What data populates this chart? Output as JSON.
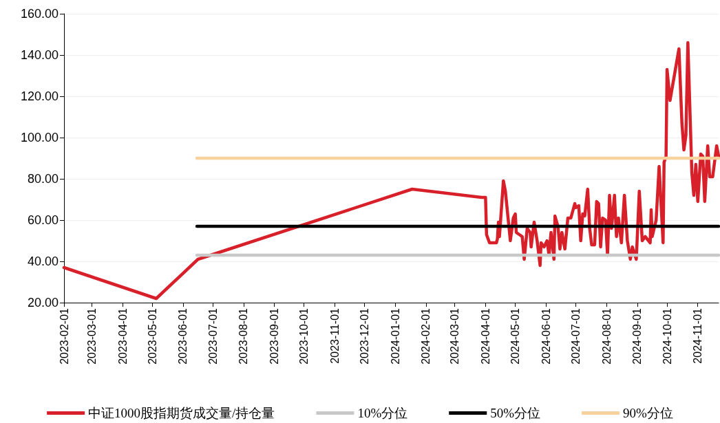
{
  "chart_data": {
    "type": "line",
    "marker": "none",
    "line_style": "solid",
    "grid": "y",
    "legend": "bottom",
    "xlim": [
      "2023-02-01",
      "2024-11-22"
    ],
    "xticks": [
      "2023-02-01",
      "2023-03-01",
      "2023-04-01",
      "2023-05-01",
      "2023-06-01",
      "2023-07-01",
      "2023-08-01",
      "2023-09-01",
      "2023-10-01",
      "2023-11-01",
      "2023-12-01",
      "2024-01-01",
      "2024-02-01",
      "2024-03-01",
      "2024-04-01",
      "2024-05-01",
      "2024-06-01",
      "2024-07-01",
      "2024-08-01",
      "2024-09-01",
      "2024-10-01",
      "2024-11-01"
    ],
    "ylim": [
      20,
      160
    ],
    "yticks": [
      {
        "value": 20,
        "label": "20.00"
      },
      {
        "value": 40,
        "label": "40.00"
      },
      {
        "value": 60,
        "label": "60.00"
      },
      {
        "value": 80,
        "label": "80.00"
      },
      {
        "value": 100,
        "label": "100.00"
      },
      {
        "value": 120,
        "label": "120.00"
      },
      {
        "value": 140,
        "label": "140.00"
      },
      {
        "value": 160,
        "label": "160.00"
      }
    ],
    "series": [
      {
        "name": "中证1000股指期货成交量/持仓量",
        "color": "#d7202a",
        "x": [
          "2023-02-01",
          "2023-05-05",
          "2023-06-16",
          "2024-01-18",
          "2024-03-28",
          "2024-04-01",
          "2024-04-02",
          "2024-04-05",
          "2024-04-12",
          "2024-04-13",
          "2024-04-14",
          "2024-04-15",
          "2024-04-19",
          "2024-04-21",
          "2024-04-26",
          "2024-04-29",
          "2024-05-01",
          "2024-05-02",
          "2024-05-08",
          "2024-05-10",
          "2024-05-13",
          "2024-05-16",
          "2024-05-17",
          "2024-05-20",
          "2024-05-23",
          "2024-05-26",
          "2024-05-27",
          "2024-05-30",
          "2024-06-02",
          "2024-06-04",
          "2024-06-06",
          "2024-06-09",
          "2024-06-10",
          "2024-06-13",
          "2024-06-15",
          "2024-06-17",
          "2024-06-20",
          "2024-06-23",
          "2024-06-26",
          "2024-06-30",
          "2024-07-01",
          "2024-07-04",
          "2024-07-06",
          "2024-07-08",
          "2024-07-10",
          "2024-07-13",
          "2024-07-15",
          "2024-07-17",
          "2024-07-20",
          "2024-07-22",
          "2024-07-24",
          "2024-07-26",
          "2024-07-28",
          "2024-07-31",
          "2024-08-02",
          "2024-08-04",
          "2024-08-06",
          "2024-08-09",
          "2024-08-11",
          "2024-08-13",
          "2024-08-16",
          "2024-08-19",
          "2024-08-22",
          "2024-08-25",
          "2024-08-27",
          "2024-08-31",
          "2024-09-03",
          "2024-09-06",
          "2024-09-09",
          "2024-09-14",
          "2024-09-15",
          "2024-09-16",
          "2024-09-20",
          "2024-09-23",
          "2024-09-27",
          "2024-09-28",
          "2024-09-30",
          "2024-10-01",
          "2024-10-04",
          "2024-10-13",
          "2024-10-16",
          "2024-10-18",
          "2024-10-20",
          "2024-10-22",
          "2024-10-26",
          "2024-10-28",
          "2024-10-30",
          "2024-11-01",
          "2024-11-04",
          "2024-11-06",
          "2024-11-08",
          "2024-11-11",
          "2024-11-13",
          "2024-11-16",
          "2024-11-20",
          "2024-11-22"
        ],
        "values": [
          37,
          22,
          41,
          75,
          71,
          71,
          53,
          49,
          49,
          51,
          59,
          52,
          79,
          74,
          50,
          61,
          63,
          54,
          52,
          41,
          56,
          54,
          47,
          59,
          50,
          38,
          49,
          47,
          50,
          43,
          54,
          41,
          62,
          57,
          46,
          54,
          46,
          61,
          61,
          68,
          66,
          67,
          50,
          63,
          62,
          75,
          56,
          48,
          48,
          69,
          68,
          47,
          61,
          60,
          43,
          72,
          56,
          72,
          52,
          61,
          49,
          72,
          50,
          41,
          47,
          41,
          74,
          50,
          52,
          49,
          65,
          52,
          60,
          86,
          49,
          88,
          91,
          133,
          118,
          143,
          107,
          94,
          101,
          146,
          83,
          72,
          87,
          69,
          92,
          91,
          69,
          96,
          81,
          81,
          96,
          91
        ]
      },
      {
        "name": "10%分位",
        "color": "#c8c8c8",
        "x": [
          "2023-06-15",
          "2024-11-22"
        ],
        "values": [
          43,
          43
        ]
      },
      {
        "name": "50%分位",
        "color": "#000000",
        "x": [
          "2023-06-15",
          "2024-11-22"
        ],
        "values": [
          57,
          57
        ]
      },
      {
        "name": "90%分位",
        "color": "#f8d29c",
        "x": [
          "2023-06-15",
          "2024-11-22"
        ],
        "values": [
          90,
          90
        ]
      }
    ]
  }
}
